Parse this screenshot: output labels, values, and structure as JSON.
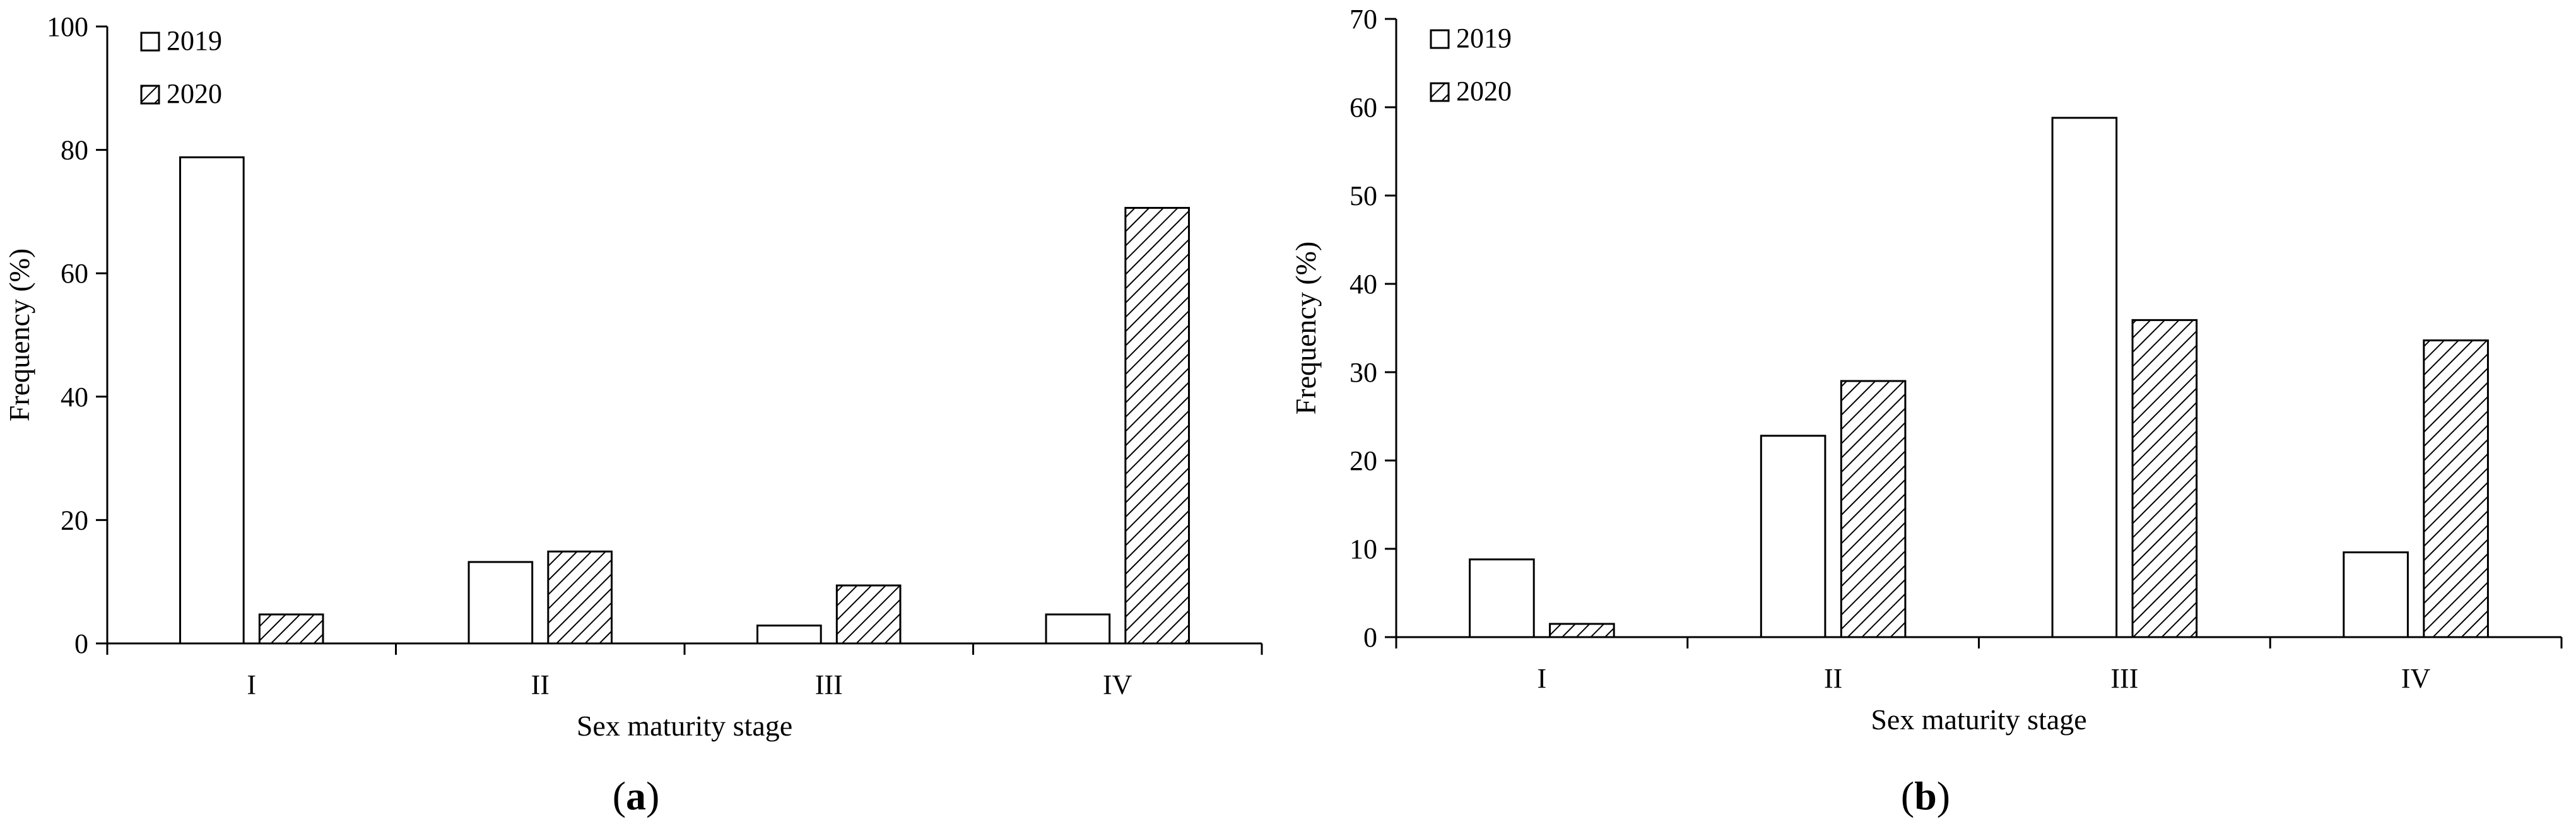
{
  "chart_data": [
    {
      "type": "bar",
      "panel_label": "a",
      "categories": [
        "I",
        "II",
        "III",
        "IV"
      ],
      "series": [
        {
          "name": "2019",
          "values": [
            78.8,
            13.2,
            2.9,
            4.7
          ]
        },
        {
          "name": "2020",
          "values": [
            4.7,
            14.9,
            9.4,
            70.6
          ]
        }
      ],
      "xlabel": "Sex maturity stage",
      "ylabel": "Frequency (%)",
      "ylim": [
        0,
        100
      ],
      "yticks": [
        0,
        20,
        40,
        60,
        80,
        100
      ],
      "legend_position": "top-left",
      "grid": false
    },
    {
      "type": "bar",
      "panel_label": "b",
      "categories": [
        "I",
        "II",
        "III",
        "IV"
      ],
      "series": [
        {
          "name": "2019",
          "values": [
            8.8,
            22.8,
            58.8,
            9.6
          ]
        },
        {
          "name": "2020",
          "values": [
            1.5,
            29.0,
            35.9,
            33.6
          ]
        }
      ],
      "xlabel": "Sex maturity stage",
      "ylabel": "Frequency (%)",
      "ylim": [
        0,
        70
      ],
      "yticks": [
        0,
        10,
        20,
        30,
        40,
        50,
        60,
        70
      ],
      "legend_position": "top-left",
      "grid": false
    }
  ],
  "styles": {
    "series_2019_fill": "#ffffff",
    "series_2020_fill": "diagonal-hatch",
    "stroke_color": "#000000"
  }
}
